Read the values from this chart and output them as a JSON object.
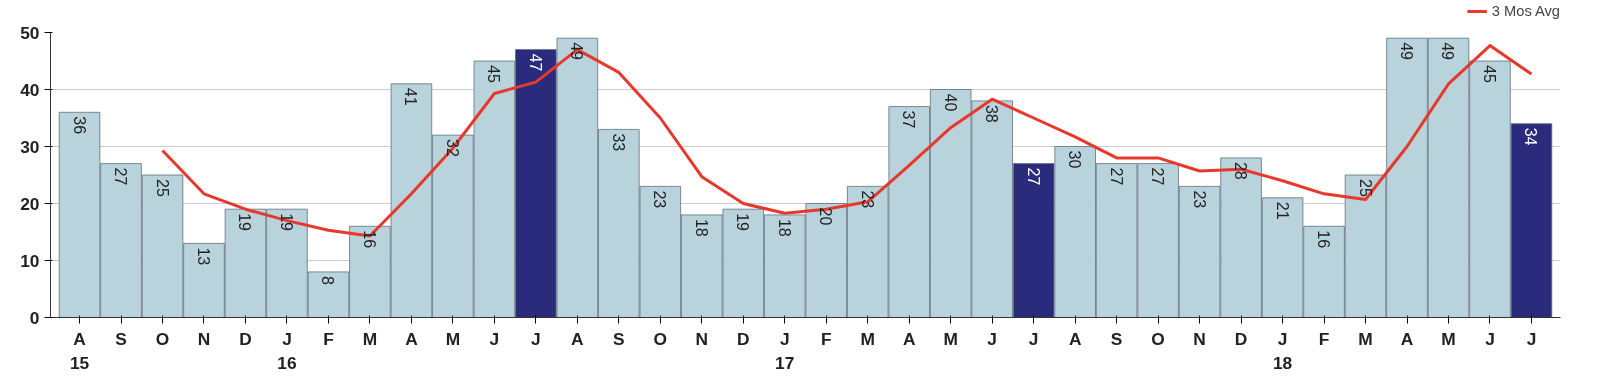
{
  "chart_data": {
    "type": "bar",
    "categories": [
      "A\n15",
      "S",
      "O",
      "N",
      "D",
      "J\n16",
      "F",
      "M",
      "A",
      "M",
      "J",
      "J",
      "A",
      "S",
      "O",
      "N",
      "D",
      "J\n17",
      "F",
      "M",
      "A",
      "M",
      "J",
      "J",
      "A",
      "S",
      "O",
      "N",
      "D",
      "J\n18",
      "F",
      "M",
      "A",
      "M",
      "J",
      "J"
    ],
    "series": [
      {
        "values": [
          36,
          27,
          25,
          13,
          19,
          19,
          8,
          16,
          41,
          32,
          45,
          47,
          49,
          33,
          23,
          18,
          19,
          18,
          20,
          23,
          37,
          40,
          38,
          27,
          30,
          27,
          27,
          23,
          28,
          21,
          16,
          25,
          49,
          49,
          45,
          34
        ],
        "value_labels": [
          "36",
          "27",
          "25",
          "13",
          "19",
          "19",
          "8",
          "16",
          "41",
          "32",
          "45",
          "47",
          "49",
          "33",
          "23",
          "18",
          "19",
          "18",
          "20",
          "23",
          "37",
          "40",
          "38",
          "27",
          "30",
          "27",
          "27",
          "23",
          "28",
          "21",
          "16",
          "25",
          "49",
          "49",
          "45",
          "34"
        ],
        "colors": [
          "#b9d3dd",
          "#b9d3dd",
          "#b9d3dd",
          "#b9d3dd",
          "#b9d3dd",
          "#b9d3dd",
          "#b9d3dd",
          "#b9d3dd",
          "#b9d3dd",
          "#b9d3dd",
          "#b9d3dd",
          "#2b2b7e",
          "#b9d3dd",
          "#b9d3dd",
          "#b9d3dd",
          "#b9d3dd",
          "#b9d3dd",
          "#b9d3dd",
          "#b9d3dd",
          "#b9d3dd",
          "#b9d3dd",
          "#b9d3dd",
          "#b9d3dd",
          "#2b2b7e",
          "#b9d3dd",
          "#b9d3dd",
          "#b9d3dd",
          "#b9d3dd",
          "#b9d3dd",
          "#b9d3dd",
          "#b9d3dd",
          "#b9d3dd",
          "#b9d3dd",
          "#b9d3dd",
          "#b9d3dd",
          "#2b2b7e"
        ]
      },
      {
        "type": "line",
        "name": "3 Mos Avg",
        "color": "#e8382c",
        "values": [
          null,
          null,
          29.3,
          21.7,
          19,
          17,
          15.3,
          14.3,
          21.7,
          29.7,
          39.3,
          41.3,
          47,
          43,
          35,
          24.7,
          20,
          18.3,
          19,
          20.3,
          26.7,
          33.3,
          38.3,
          35,
          31.7,
          28,
          28,
          25.7,
          26,
          24,
          21.7,
          20.7,
          30,
          41,
          47.7,
          42.7
        ]
      }
    ],
    "ylim": [
      0,
      50
    ],
    "yticks": [
      0,
      10,
      20,
      30,
      40,
      50
    ],
    "grid": "y",
    "legend": "top right"
  }
}
